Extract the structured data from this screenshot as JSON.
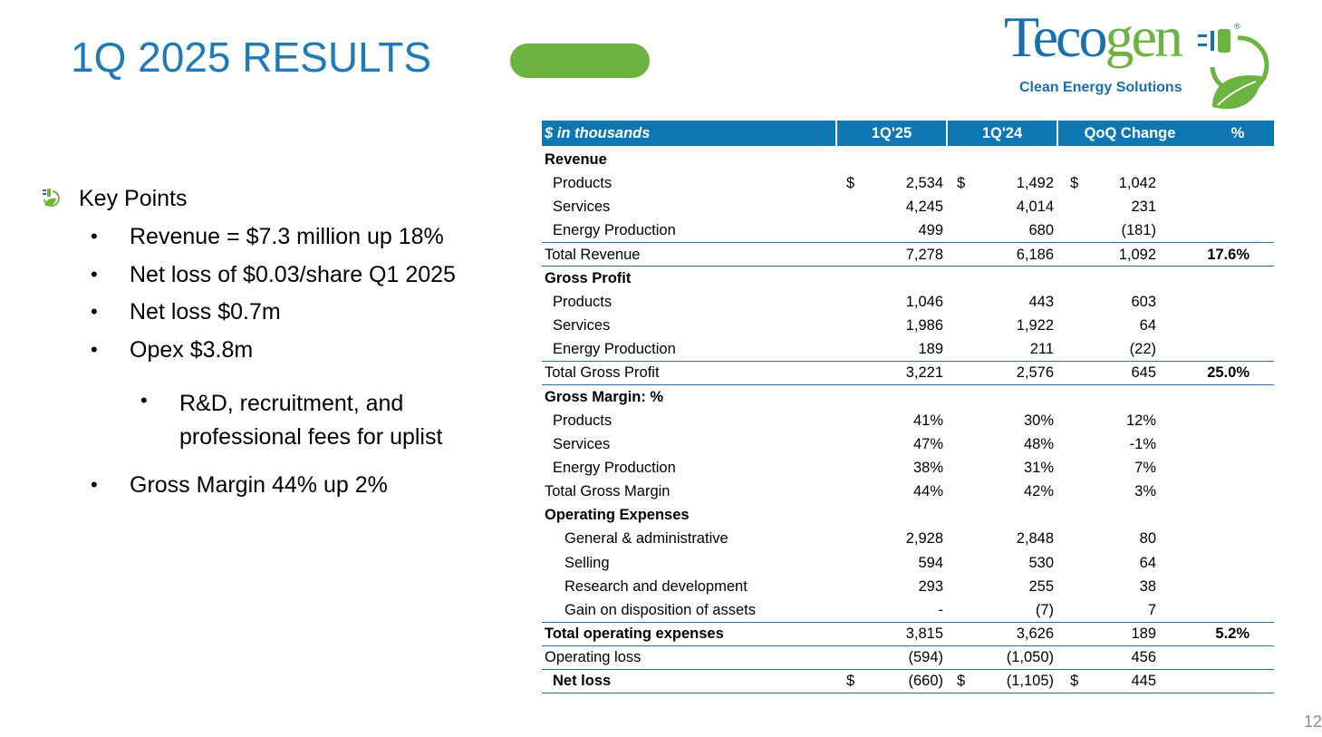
{
  "title": "1Q 2025 RESULTS",
  "logo": {
    "name_blue": "Teco",
    "name_green": "gen",
    "tagline": "Clean Energy Solutions"
  },
  "key_points": {
    "heading": "Key Points",
    "items": [
      {
        "text": "Revenue = $7.3 million up 18%"
      },
      {
        "text": "Net loss of $0.03/share Q1 2025"
      },
      {
        "text": "Net loss $0.7m"
      },
      {
        "text": "Opex $3.8m",
        "subitems": [
          "R&D, recruitment, and professional fees for uplist"
        ]
      },
      {
        "text": "Gross Margin 44% up 2%"
      }
    ]
  },
  "table": {
    "header": [
      "$ in thousands",
      "1Q'25",
      "1Q'24",
      "QoQ Change",
      "%"
    ],
    "rows": [
      {
        "label": "Revenue",
        "bold": true
      },
      {
        "label": "Products",
        "indent": 1,
        "currency": "$",
        "values": [
          "2,534",
          "1,492",
          "1,042"
        ]
      },
      {
        "label": "Services",
        "indent": 1,
        "values": [
          "4,245",
          "4,014",
          "231"
        ]
      },
      {
        "label": "Energy Production",
        "indent": 1,
        "values": [
          "499",
          "680",
          "(181)"
        ]
      },
      {
        "label": "Total Revenue",
        "values": [
          "7,278",
          "6,186",
          "1,092"
        ],
        "pct": "17.6%",
        "rule_above": true,
        "rule_below": true
      },
      {
        "label": "Gross Profit",
        "bold": true
      },
      {
        "label": "Products",
        "indent": 1,
        "values": [
          "1,046",
          "443",
          "603"
        ]
      },
      {
        "label": "Services",
        "indent": 1,
        "values": [
          "1,986",
          "1,922",
          "64"
        ]
      },
      {
        "label": "Energy Production",
        "indent": 1,
        "values": [
          "189",
          "211",
          "(22)"
        ]
      },
      {
        "label": "Total Gross Profit",
        "values": [
          "3,221",
          "2,576",
          "645"
        ],
        "pct": "25.0%",
        "rule_above": true,
        "rule_below": true
      },
      {
        "label": "Gross Margin: %",
        "bold": true
      },
      {
        "label": "Products",
        "indent": 1,
        "values": [
          "41%",
          "30%",
          "12%"
        ]
      },
      {
        "label": "Services",
        "indent": 1,
        "values": [
          "47%",
          "48%",
          "-1%"
        ]
      },
      {
        "label": "Energy Production",
        "indent": 1,
        "values": [
          "38%",
          "31%",
          "7%"
        ]
      },
      {
        "label": "Total Gross Margin",
        "values": [
          "44%",
          "42%",
          "3%"
        ]
      },
      {
        "label": "Operating Expenses",
        "bold": true
      },
      {
        "label": "General & administrative",
        "indent": 2,
        "values": [
          "2,928",
          "2,848",
          "80"
        ]
      },
      {
        "label": "Selling",
        "indent": 2,
        "values": [
          "594",
          "530",
          "64"
        ]
      },
      {
        "label": "Research and development",
        "indent": 2,
        "values": [
          "293",
          "255",
          "38"
        ]
      },
      {
        "label": "Gain on disposition of assets",
        "indent": 2,
        "values": [
          "-",
          "(7)",
          "7"
        ]
      },
      {
        "label": "Total operating expenses",
        "bold": true,
        "values": [
          "3,815",
          "3,626",
          "189"
        ],
        "pct": "5.2%",
        "rule_above": true,
        "rule_below": true
      },
      {
        "label": "Operating loss",
        "values": [
          "(594)",
          "(1,050)",
          "456"
        ],
        "rule_below": true
      },
      {
        "label": "Net loss",
        "bold": true,
        "indent": 1,
        "currency": "$",
        "values": [
          "(660)",
          "(1,105)",
          "445"
        ],
        "rule_below": true
      }
    ]
  },
  "page_number": "12"
}
